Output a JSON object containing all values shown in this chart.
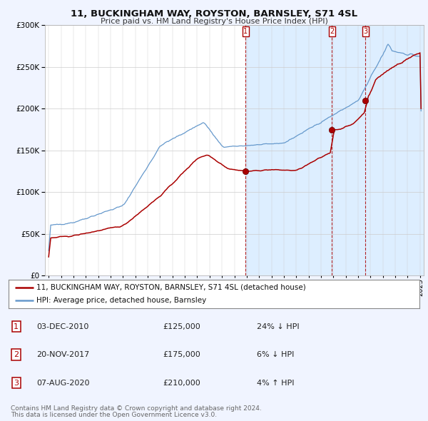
{
  "title": "11, BUCKINGHAM WAY, ROYSTON, BARNSLEY, S71 4SL",
  "subtitle": "Price paid vs. HM Land Registry's House Price Index (HPI)",
  "legend_line1": "11, BUCKINGHAM WAY, ROYSTON, BARNSLEY, S71 4SL (detached house)",
  "legend_line2": "HPI: Average price, detached house, Barnsley",
  "footer1": "Contains HM Land Registry data © Crown copyright and database right 2024.",
  "footer2": "This data is licensed under the Open Government Licence v3.0.",
  "sales": [
    {
      "num": 1,
      "date": "03-DEC-2010",
      "price": "£125,000",
      "hpi": "24% ↓ HPI",
      "year": 2010.92
    },
    {
      "num": 2,
      "date": "20-NOV-2017",
      "price": "£175,000",
      "hpi": "6% ↓ HPI",
      "year": 2017.89
    },
    {
      "num": 3,
      "date": "07-AUG-2020",
      "price": "£210,000",
      "hpi": "4% ↑ HPI",
      "year": 2020.6
    }
  ],
  "sale_values": [
    125000,
    175000,
    210000
  ],
  "ylim": [
    0,
    300000
  ],
  "xlim_start": 1994.7,
  "xlim_end": 2025.3,
  "bg_color": "#f0f4ff",
  "plot_bg_color": "#ffffff",
  "shaded_bg_color": "#ddeeff",
  "red_color": "#aa0000",
  "blue_color": "#6699cc",
  "grid_color": "#cccccc",
  "title_fontsize": 9.5,
  "subtitle_fontsize": 8.0,
  "axis_label_fontsize": 7.5,
  "tick_fontsize": 7.0,
  "legend_fontsize": 7.5,
  "table_fontsize": 8.0,
  "footer_fontsize": 6.5
}
